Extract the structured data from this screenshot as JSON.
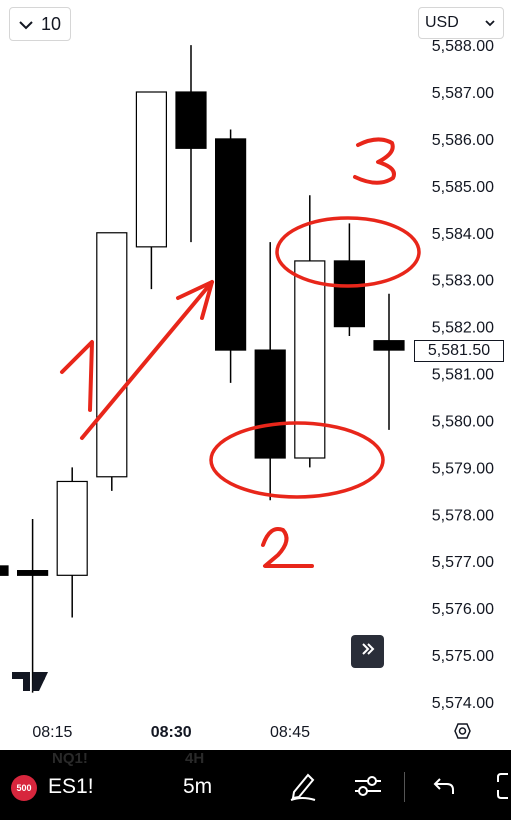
{
  "toolbar": {
    "interval_value": "10",
    "currency": "USD"
  },
  "price_tag": "5,581.50",
  "bottom_bar": {
    "ghost_symbol": "NQ1!",
    "ghost_timeframe": "4H",
    "badge": "500",
    "symbol": "ES1!",
    "timeframe": "5m"
  },
  "annotations": [
    "1",
    "2",
    "3"
  ],
  "chart_data": {
    "type": "candlestick",
    "ylim": [
      5573.6,
      5588.5
    ],
    "y_ticks": [
      5574,
      5575,
      5576,
      5577,
      5578,
      5579,
      5580,
      5581,
      5582,
      5583,
      5584,
      5585,
      5586,
      5587,
      5588
    ],
    "y_tick_labels": [
      "5,574.00",
      "5,575.00",
      "5,576.00",
      "5,577.00",
      "5,578.00",
      "5,579.00",
      "5,580.00",
      "5,581.00",
      "5,582.00",
      "5,583.00",
      "5,584.00",
      "5,585.00",
      "5,586.00",
      "5,587.00",
      "5,588.00"
    ],
    "x_labels": [
      {
        "label": "08:15",
        "candle": 1.5
      },
      {
        "label": "08:30",
        "candle": 4.5,
        "bold": true
      },
      {
        "label": "08:45",
        "candle": 7.5
      }
    ],
    "candles": [
      {
        "open": 5576.9,
        "high": 5576.9,
        "low": 5576.7,
        "close": 5576.7
      },
      {
        "open": 5576.8,
        "high": 5577.9,
        "low": 5574.2,
        "close": 5576.7
      },
      {
        "open": 5576.7,
        "high": 5579.0,
        "low": 5575.8,
        "close": 5578.7
      },
      {
        "open": 5578.8,
        "high": 5584.0,
        "low": 5578.5,
        "close": 5584.0
      },
      {
        "open": 5583.7,
        "high": 5587.0,
        "low": 5582.8,
        "close": 5587.0
      },
      {
        "open": 5587.0,
        "high": 5588.0,
        "low": 5583.8,
        "close": 5585.8
      },
      {
        "open": 5586.0,
        "high": 5586.2,
        "low": 5580.8,
        "close": 5581.5
      },
      {
        "open": 5581.5,
        "high": 5583.8,
        "low": 5578.3,
        "close": 5579.2
      },
      {
        "open": 5579.2,
        "high": 5584.8,
        "low": 5579.0,
        "close": 5583.4
      },
      {
        "open": 5583.4,
        "high": 5584.2,
        "low": 5581.8,
        "close": 5582.0
      },
      {
        "open": 5581.7,
        "high": 5582.7,
        "low": 5579.8,
        "close": 5581.5
      }
    ],
    "colors": {
      "up_fill": "#ffffff",
      "down_fill": "#000000",
      "stroke": "#000000",
      "annotation": "#e8261a"
    }
  }
}
